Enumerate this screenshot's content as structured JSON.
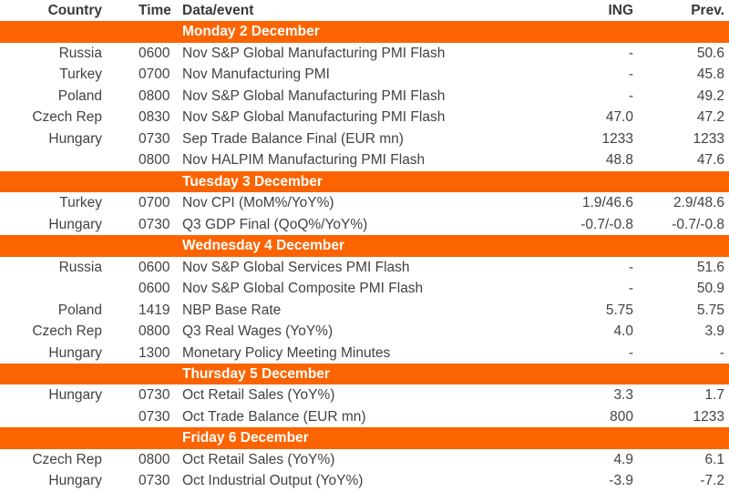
{
  "colors": {
    "accent_orange": "#FB6400",
    "header_text": "#383838",
    "body_text": "#424242",
    "band_text": "#ffffff",
    "background": "#ffffff"
  },
  "header": {
    "country": "Country",
    "time": "Time",
    "event": "Data/event",
    "ing": "ING",
    "prev": "Prev."
  },
  "sections": [
    {
      "title": "Monday 2 December",
      "rows": [
        {
          "country": "Russia",
          "time": "0600",
          "event": "Nov S&P Global Manufacturing PMI Flash",
          "ing": "-",
          "prev": "50.6"
        },
        {
          "country": "Turkey",
          "time": "0700",
          "event": "Nov Manufacturing PMI",
          "ing": "-",
          "prev": "45.8"
        },
        {
          "country": "Poland",
          "time": "0800",
          "event": "Nov S&P Global Manufacturing PMI Flash",
          "ing": "-",
          "prev": "49.2"
        },
        {
          "country": "Czech Rep",
          "time": "0830",
          "event": "Nov S&P Global Manufacturing PMI Flash",
          "ing": "47.0",
          "prev": "47.2"
        },
        {
          "country": "Hungary",
          "time": "0730",
          "event": "Sep Trade Balance Final (EUR mn)",
          "ing": "1233",
          "prev": "1233"
        },
        {
          "country": "",
          "time": "0800",
          "event": "Nov HALPIM Manufacturing PMI Flash",
          "ing": "48.8",
          "prev": "47.6"
        }
      ]
    },
    {
      "title": "Tuesday 3 December",
      "rows": [
        {
          "country": "Turkey",
          "time": "0700",
          "event": "Nov CPI (MoM%/YoY%)",
          "ing": "1.9/46.6",
          "prev": "2.9/48.6"
        },
        {
          "country": "Hungary",
          "time": "0730",
          "event": "Q3 GDP Final (QoQ%/YoY%)",
          "ing": "-0.7/-0.8",
          "prev": "-0.7/-0.8"
        }
      ]
    },
    {
      "title": "Wednesday 4 December",
      "rows": [
        {
          "country": "Russia",
          "time": "0600",
          "event": "Nov S&P Global Services PMI Flash",
          "ing": "-",
          "prev": "51.6"
        },
        {
          "country": "",
          "time": "0600",
          "event": "Nov S&P Global Composite PMI Flash",
          "ing": "-",
          "prev": "50.9"
        },
        {
          "country": "Poland",
          "time": "1419",
          "event": "NBP Base Rate",
          "ing": "5.75",
          "prev": "5.75"
        },
        {
          "country": "Czech Rep",
          "time": "0800",
          "event": "Q3 Real Wages (YoY%)",
          "ing": "4.0",
          "prev": "3.9"
        },
        {
          "country": "Hungary",
          "time": "1300",
          "event": "Monetary Policy Meeting Minutes",
          "ing": "-",
          "prev": "-"
        }
      ]
    },
    {
      "title": "Thursday 5 December",
      "rows": [
        {
          "country": "Hungary",
          "time": "0730",
          "event": "Oct Retail Sales (YoY%)",
          "ing": "3.3",
          "prev": "1.7"
        },
        {
          "country": "",
          "time": "0730",
          "event": "Oct Trade Balance (EUR mn)",
          "ing": "800",
          "prev": "1233"
        }
      ]
    },
    {
      "title": "Friday 6 December",
      "rows": [
        {
          "country": "Czech Rep",
          "time": "0800",
          "event": "Oct Retail Sales (YoY%)",
          "ing": "4.9",
          "prev": "6.1"
        },
        {
          "country": "Hungary",
          "time": "0730",
          "event": "Oct Industrial Output (YoY%)",
          "ing": "-3.9",
          "prev": "-7.2"
        }
      ]
    }
  ]
}
